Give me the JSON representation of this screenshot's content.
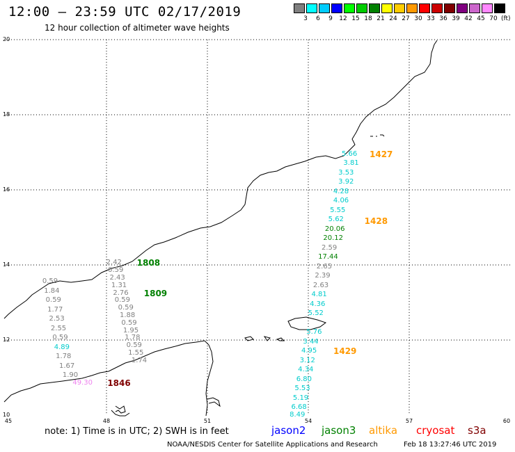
{
  "header": {
    "title": "12:00 — 23:59 UTC 02/17/2019",
    "subtitle": "12 hour collection of altimeter wave heights"
  },
  "legend": {
    "unit": "(ft)",
    "items": [
      {
        "label": "3",
        "color": "#808080"
      },
      {
        "label": "6",
        "color": "#00ffff"
      },
      {
        "label": "9",
        "color": "#00ccff"
      },
      {
        "label": "12",
        "color": "#0000ff"
      },
      {
        "label": "15",
        "color": "#00ff00"
      },
      {
        "label": "18",
        "color": "#00cc00"
      },
      {
        "label": "21",
        "color": "#008000"
      },
      {
        "label": "24",
        "color": "#ffff00"
      },
      {
        "label": "27",
        "color": "#ffcc00"
      },
      {
        "label": "30",
        "color": "#ff9900"
      },
      {
        "label": "33",
        "color": "#ff0000"
      },
      {
        "label": "36",
        "color": "#cc0000"
      },
      {
        "label": "39",
        "color": "#800000"
      },
      {
        "label": "42",
        "color": "#800080"
      },
      {
        "label": "45",
        "color": "#cc66cc"
      },
      {
        "label": "70",
        "color": "#ff88ff"
      },
      {
        "label": "",
        "color": "#000000"
      }
    ]
  },
  "map": {
    "lat_labels": [
      "20",
      "18",
      "16",
      "14",
      "12",
      "10"
    ],
    "lon_labels": [
      "45",
      "48",
      "51",
      "54",
      "57",
      "60"
    ]
  },
  "tracks": [
    {
      "satellite": "jason3",
      "time": "1808",
      "time_color": "#008000",
      "points": [
        {
          "lon": 48.2,
          "lat": 14.05,
          "value": "2.42",
          "color": "#808080"
        },
        {
          "lon": 48.25,
          "lat": 13.85,
          "value": "0.59",
          "color": "#808080"
        },
        {
          "lon": 48.3,
          "lat": 13.65,
          "value": "2.43",
          "color": "#808080"
        },
        {
          "lon": 48.35,
          "lat": 13.45,
          "value": "1.31",
          "color": "#808080"
        },
        {
          "lon": 48.4,
          "lat": 13.25,
          "value": "2.76",
          "color": "#808080"
        },
        {
          "lon": 48.45,
          "lat": 13.05,
          "value": "0.59",
          "color": "#808080"
        },
        {
          "lon": 48.55,
          "lat": 12.85,
          "value": "0.59",
          "color": "#808080"
        },
        {
          "lon": 48.6,
          "lat": 12.65,
          "value": "1.88",
          "color": "#808080"
        },
        {
          "lon": 48.65,
          "lat": 12.45,
          "value": "0.59",
          "color": "#808080"
        },
        {
          "lon": 48.7,
          "lat": 12.25,
          "value": "1.95",
          "color": "#808080"
        },
        {
          "lon": 48.75,
          "lat": 12.05,
          "value": "1.78",
          "color": "#808080"
        },
        {
          "lon": 48.8,
          "lat": 11.85,
          "value": "0.59",
          "color": "#808080"
        },
        {
          "lon": 48.85,
          "lat": 11.65,
          "value": "1.55",
          "color": "#808080"
        },
        {
          "lon": 48.95,
          "lat": 11.45,
          "value": "1.74",
          "color": "#808080"
        }
      ]
    },
    {
      "satellite": "jason3",
      "time": "1809",
      "time_color": "#008000",
      "points": [
        {
          "lon": 46.3,
          "lat": 13.55,
          "value": "0.59",
          "color": "#808080"
        },
        {
          "lon": 46.35,
          "lat": 13.3,
          "value": "1.84",
          "color": "#808080"
        },
        {
          "lon": 46.4,
          "lat": 13.05,
          "value": "0.59",
          "color": "#808080"
        },
        {
          "lon": 46.45,
          "lat": 12.8,
          "value": "1.77",
          "color": "#808080"
        },
        {
          "lon": 46.5,
          "lat": 12.55,
          "value": "2.53",
          "color": "#808080"
        },
        {
          "lon": 46.55,
          "lat": 12.3,
          "value": "2.55",
          "color": "#808080"
        },
        {
          "lon": 46.6,
          "lat": 12.05,
          "value": "0.59",
          "color": "#808080"
        },
        {
          "lon": 46.65,
          "lat": 11.8,
          "value": "4.89",
          "color": "#00cccc"
        },
        {
          "lon": 46.7,
          "lat": 11.55,
          "value": "1.78",
          "color": "#808080"
        },
        {
          "lon": 46.8,
          "lat": 11.3,
          "value": "1.67",
          "color": "#808080"
        },
        {
          "lon": 46.9,
          "lat": 11.05,
          "value": "1.90",
          "color": "#808080"
        }
      ]
    },
    {
      "satellite": "s3a",
      "time": "1846",
      "time_color": "#800000",
      "points": [
        {
          "lon": 47.2,
          "lat": 10.85,
          "value": "49.30",
          "color": "#ee82ee"
        }
      ]
    },
    {
      "satellite": "altika",
      "time": "1427",
      "time_color": "#ff9900",
      "points": [
        {
          "lon": 55.2,
          "lat": 16.95,
          "value": "5.66",
          "color": "#00cccc"
        },
        {
          "lon": 55.25,
          "lat": 16.7,
          "value": "3.81",
          "color": "#00cccc"
        },
        {
          "lon": 55.1,
          "lat": 16.45,
          "value": "3.53",
          "color": "#00cccc"
        },
        {
          "lon": 55.1,
          "lat": 16.2,
          "value": "3.92",
          "color": "#00cccc"
        },
        {
          "lon": 54.95,
          "lat": 15.95,
          "value": "4.28",
          "color": "#00cccc"
        }
      ]
    },
    {
      "satellite": "altika",
      "time": "1428",
      "time_color": "#ff9900",
      "points": [
        {
          "lon": 54.95,
          "lat": 15.7,
          "value": "4.06",
          "color": "#00cccc"
        },
        {
          "lon": 54.85,
          "lat": 15.45,
          "value": "5.55",
          "color": "#00cccc"
        },
        {
          "lon": 54.8,
          "lat": 15.2,
          "value": "5.62",
          "color": "#00cccc"
        },
        {
          "lon": 54.7,
          "lat": 14.95,
          "value": "20.06",
          "color": "#008000"
        },
        {
          "lon": 54.65,
          "lat": 14.7,
          "value": "20.12",
          "color": "#008000"
        },
        {
          "lon": 54.6,
          "lat": 14.45,
          "value": "2.59",
          "color": "#808080"
        },
        {
          "lon": 54.5,
          "lat": 14.2,
          "value": "17.44",
          "color": "#008000"
        },
        {
          "lon": 54.45,
          "lat": 13.95,
          "value": "2.65",
          "color": "#808080"
        },
        {
          "lon": 54.4,
          "lat": 13.7,
          "value": "2.39",
          "color": "#808080"
        },
        {
          "lon": 54.35,
          "lat": 13.45,
          "value": "2.63",
          "color": "#808080"
        },
        {
          "lon": 54.3,
          "lat": 13.2,
          "value": "4.81",
          "color": "#00cccc"
        },
        {
          "lon": 54.25,
          "lat": 12.95,
          "value": "4.36",
          "color": "#00cccc"
        },
        {
          "lon": 54.2,
          "lat": 12.7,
          "value": "5.52",
          "color": "#00cccc"
        }
      ]
    },
    {
      "satellite": "altika",
      "time": "1429",
      "time_color": "#ff9900",
      "points": [
        {
          "lon": 54.15,
          "lat": 12.2,
          "value": "5.76",
          "color": "#00cccc"
        },
        {
          "lon": 54.05,
          "lat": 11.95,
          "value": "3.44",
          "color": "#00cccc"
        },
        {
          "lon": 54.0,
          "lat": 11.7,
          "value": "4.95",
          "color": "#00cccc"
        },
        {
          "lon": 53.95,
          "lat": 11.45,
          "value": "3.12",
          "color": "#00cccc"
        },
        {
          "lon": 53.9,
          "lat": 11.2,
          "value": "4.34",
          "color": "#00cccc"
        },
        {
          "lon": 53.85,
          "lat": 10.95,
          "value": "6.80",
          "color": "#00cccc"
        },
        {
          "lon": 53.8,
          "lat": 10.7,
          "value": "5.53",
          "color": "#00cccc"
        },
        {
          "lon": 53.75,
          "lat": 10.45,
          "value": "5.19",
          "color": "#00cccc"
        },
        {
          "lon": 53.7,
          "lat": 10.2,
          "value": "6.68",
          "color": "#00cccc"
        },
        {
          "lon": 53.65,
          "lat": 10.0,
          "value": "8.49",
          "color": "#00cccc"
        }
      ]
    }
  ],
  "footer": {
    "note": "note: 1) Time is in UTC; 2) SWH is in feet",
    "missions": [
      {
        "name": "jason2",
        "color": "#0000ff"
      },
      {
        "name": "jason3",
        "color": "#008000"
      },
      {
        "name": "altika",
        "color": "#ff9900"
      },
      {
        "name": "cryosat",
        "color": "#ff0000"
      },
      {
        "name": "s3a",
        "color": "#800000"
      }
    ],
    "credit": "NOAA/NESDIS Center for Satellite Applications and Research",
    "timestamp": "Feb 18 13:27:46 UTC 2019"
  }
}
